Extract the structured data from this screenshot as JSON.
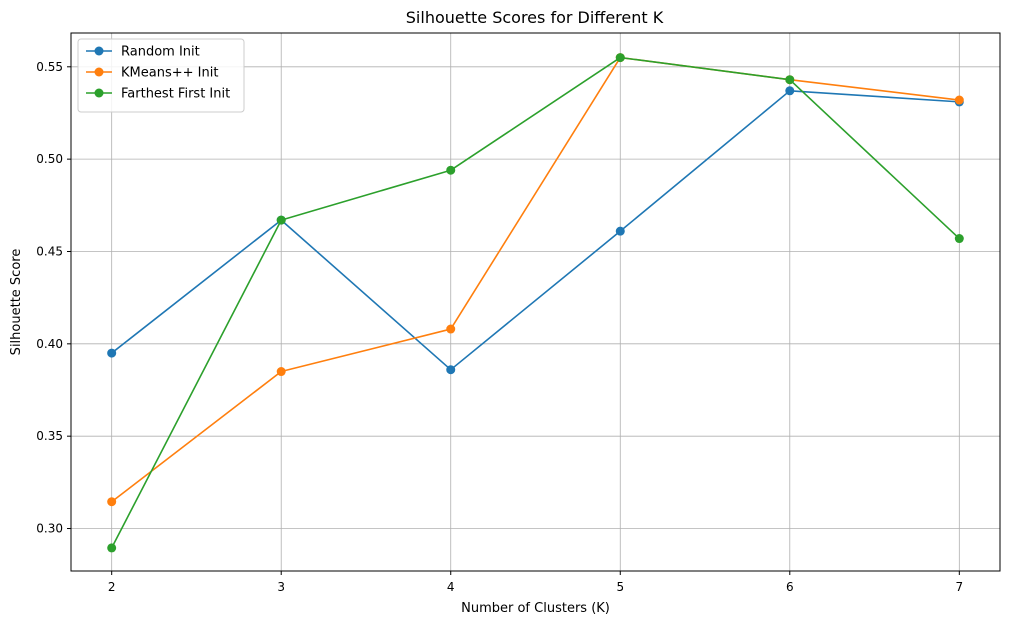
{
  "chart_data": {
    "type": "line",
    "title": "Silhouette Scores for Different K",
    "xlabel": "Number of Clusters (K)",
    "ylabel": "Silhouette Score",
    "x": [
      2,
      3,
      4,
      5,
      6,
      7
    ],
    "x_tick_labels": [
      "2",
      "3",
      "4",
      "5",
      "6",
      "7"
    ],
    "xlim": [
      1.76,
      7.24
    ],
    "ylim": [
      0.277,
      0.5683
    ],
    "y_ticks": [
      0.3,
      0.35,
      0.4,
      0.45,
      0.5,
      0.55
    ],
    "y_tick_labels": [
      "0.30",
      "0.35",
      "0.40",
      "0.45",
      "0.50",
      "0.55"
    ],
    "grid": true,
    "legend_position": "top-left",
    "markers": "circle",
    "series": [
      {
        "name": "Random Init",
        "color": "#1f77b4",
        "values": [
          0.395,
          0.467,
          0.386,
          0.461,
          0.537,
          0.531
        ]
      },
      {
        "name": "KMeans++ Init",
        "color": "#ff7f0e",
        "values": [
          0.3145,
          0.385,
          0.408,
          0.555,
          0.543,
          0.532
        ]
      },
      {
        "name": "Farthest First Init",
        "color": "#2ca02c",
        "values": [
          0.2895,
          0.467,
          0.494,
          0.555,
          0.543,
          0.457
        ]
      }
    ]
  }
}
